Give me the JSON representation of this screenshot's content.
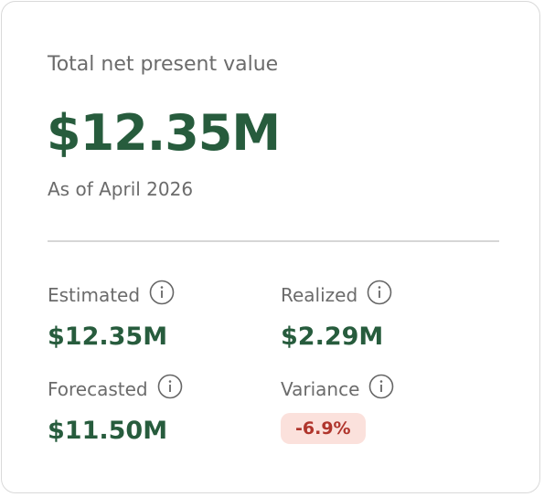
{
  "header": {
    "title": "Total net present value",
    "value": "$12.35M",
    "subtitle": "As of April 2026"
  },
  "metrics": [
    {
      "label": "Estimated",
      "value": "$12.35M"
    },
    {
      "label": "Realized",
      "value": "$2.29M"
    },
    {
      "label": "Forecasted",
      "value": "$11.50M"
    },
    {
      "label": "Variance",
      "value": "-6.9%"
    }
  ]
}
